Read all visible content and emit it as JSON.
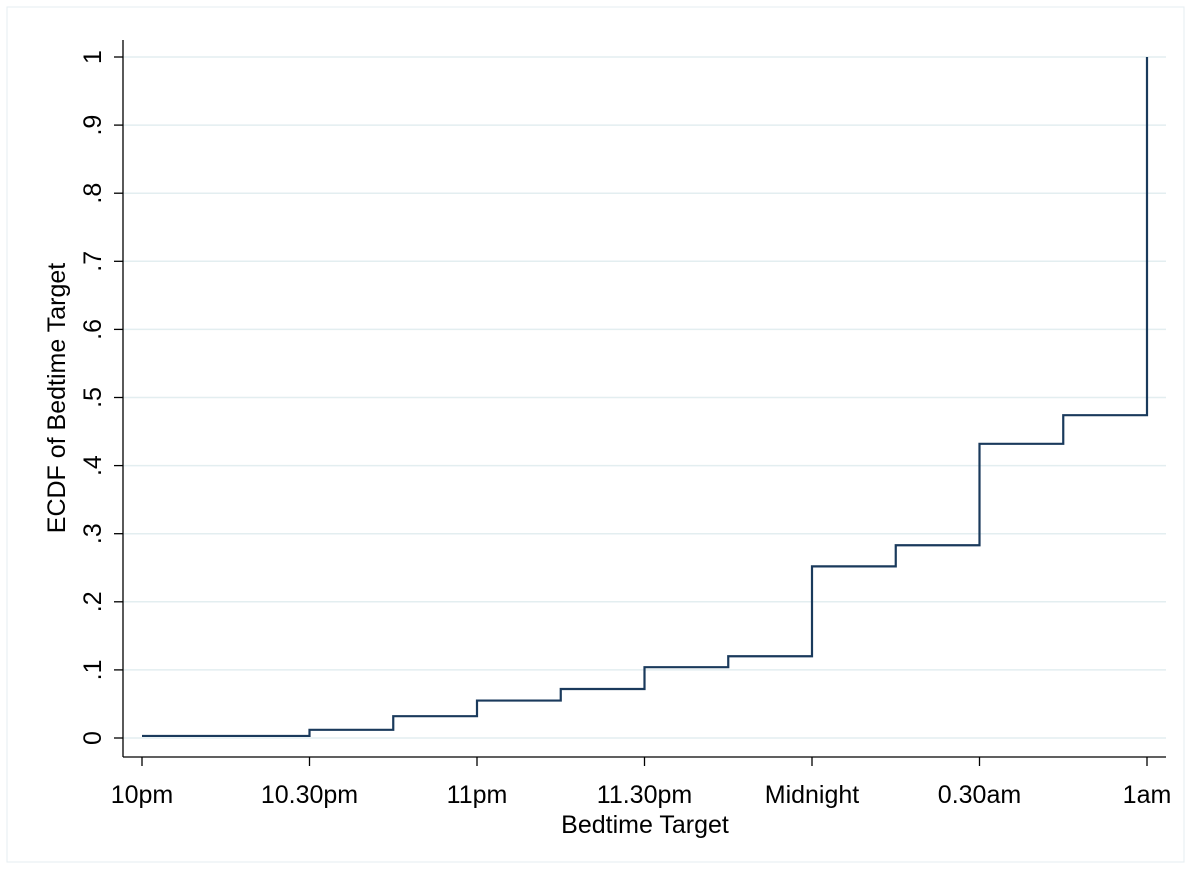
{
  "chart_data": {
    "type": "line",
    "step": true,
    "xlabel": "Bedtime Target",
    "ylabel": "ECDF of Bedtime Target",
    "xlim": [
      0,
      6
    ],
    "ylim": [
      0,
      1
    ],
    "x_ticks": [
      {
        "value": 0,
        "label": "10pm"
      },
      {
        "value": 1,
        "label": "10.30pm"
      },
      {
        "value": 2,
        "label": "11pm"
      },
      {
        "value": 3,
        "label": "11.30pm"
      },
      {
        "value": 4,
        "label": "Midnight"
      },
      {
        "value": 5,
        "label": "0.30am"
      },
      {
        "value": 6,
        "label": "1am"
      }
    ],
    "y_ticks": [
      {
        "value": 0,
        "label": "0"
      },
      {
        "value": 0.1,
        "label": ".1"
      },
      {
        "value": 0.2,
        "label": ".2"
      },
      {
        "value": 0.3,
        "label": ".3"
      },
      {
        "value": 0.4,
        "label": ".4"
      },
      {
        "value": 0.5,
        "label": ".5"
      },
      {
        "value": 0.6,
        "label": ".6"
      },
      {
        "value": 0.7,
        "label": ".7"
      },
      {
        "value": 0.8,
        "label": ".8"
      },
      {
        "value": 0.9,
        "label": ".9"
      },
      {
        "value": 1,
        "label": "1"
      }
    ],
    "grid": true,
    "line_color": "#1a3a5c",
    "grid_color": "#e3eef0",
    "series": [
      {
        "x": [
          0,
          1,
          1.5,
          2,
          2.5,
          3,
          3.5,
          4,
          4.5,
          5,
          5.5,
          6
        ],
        "y": [
          0.003,
          0.012,
          0.032,
          0.055,
          0.072,
          0.104,
          0.12,
          0.252,
          0.283,
          0.432,
          0.474,
          1.0
        ]
      }
    ]
  }
}
